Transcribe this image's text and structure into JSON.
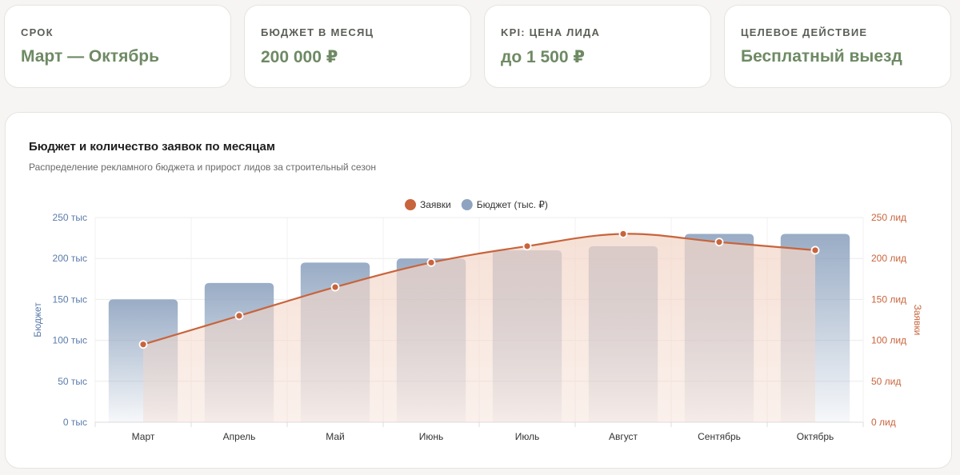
{
  "kpis": [
    {
      "label": "Срок",
      "value": "Март — Октябрь"
    },
    {
      "label": "Бюджет в месяц",
      "value": "200 000 ₽"
    },
    {
      "label": "KPI: цена лида",
      "value": "до 1 500 ₽"
    },
    {
      "label": "Целевое действие",
      "value": "Бесплатный выезд"
    }
  ],
  "colors": {
    "kpi_value": "#6e8a64",
    "budget": "#8ea3bf",
    "leads": "#c8643c",
    "leads_fill": "#f3d6c8"
  },
  "chart_data": {
    "type": "bar",
    "title": "Бюджет и количество заявок по месяцам",
    "subtitle": "Распределение рекламного бюджета и прирост лидов за строительный сезон",
    "categories": [
      "Март",
      "Апрель",
      "Май",
      "Июнь",
      "Июль",
      "Август",
      "Сентябрь",
      "Октябрь"
    ],
    "series": [
      {
        "name": "Заявки",
        "type": "area-line",
        "axis": "right",
        "values": [
          95,
          130,
          165,
          195,
          215,
          230,
          220,
          210
        ]
      },
      {
        "name": "Бюджет (тыс. ₽)",
        "type": "bar",
        "axis": "left",
        "values": [
          150,
          170,
          195,
          200,
          210,
          215,
          230,
          230
        ]
      }
    ],
    "y_left": {
      "label": "Бюджет",
      "range": [
        0,
        250
      ],
      "ticks": [
        "0 тыс",
        "50 тыс",
        "100 тыс",
        "150 тыс",
        "200 тыс",
        "250 тыс"
      ]
    },
    "y_right": {
      "label": "Заявки",
      "range": [
        0,
        250
      ],
      "ticks": [
        "0 лид",
        "50 лид",
        "100 лид",
        "150 лид",
        "200 лид",
        "250 лид"
      ]
    },
    "grid": true,
    "legend": "top-center"
  }
}
